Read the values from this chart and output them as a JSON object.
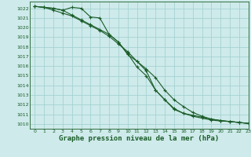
{
  "title": "Graphe pression niveau de la mer (hPa)",
  "xlabel_fontsize": 6.5,
  "bg_color": "#ceeaea",
  "grid_color": "#9ecece",
  "line_color": "#1a5c28",
  "marker": "+",
  "xlim": [
    -0.5,
    23
  ],
  "ylim": [
    1009.5,
    1022.7
  ],
  "xticks": [
    0,
    1,
    2,
    3,
    4,
    5,
    6,
    7,
    8,
    9,
    10,
    11,
    12,
    13,
    14,
    15,
    16,
    17,
    18,
    19,
    20,
    21,
    22,
    23
  ],
  "yticks": [
    1010,
    1011,
    1012,
    1013,
    1014,
    1015,
    1016,
    1017,
    1018,
    1019,
    1020,
    1021,
    1022
  ],
  "line1_x": [
    0,
    1,
    2,
    3,
    4,
    5,
    6,
    7,
    8,
    9,
    10,
    11,
    12,
    13,
    14,
    15,
    16,
    17,
    18,
    19,
    20,
    21,
    22,
    23
  ],
  "line1_y": [
    1022.2,
    1022.1,
    1022.0,
    1021.8,
    1022.1,
    1022.0,
    1021.1,
    1021.0,
    1019.3,
    1018.5,
    1017.2,
    1016.5,
    1015.5,
    1013.5,
    1012.5,
    1011.6,
    1011.1,
    1010.8,
    1010.6,
    1010.4,
    1010.3,
    1010.25,
    1010.15,
    1010.05
  ],
  "line2_x": [
    0,
    1,
    2,
    3,
    4,
    5,
    6,
    7,
    8,
    9,
    10,
    11,
    12,
    13,
    14,
    15,
    16,
    17,
    18,
    19,
    20,
    21,
    22,
    23
  ],
  "line2_y": [
    1022.2,
    1022.1,
    1021.8,
    1021.5,
    1021.2,
    1020.7,
    1020.2,
    1019.7,
    1019.1,
    1018.3,
    1017.5,
    1016.5,
    1015.7,
    1014.8,
    1013.5,
    1012.5,
    1011.8,
    1011.2,
    1010.8,
    1010.5,
    1010.35,
    1010.25,
    1010.15,
    1010.05
  ],
  "line3_x": [
    0,
    1,
    2,
    3,
    4,
    5,
    6,
    7,
    8,
    9,
    10,
    11,
    12,
    13,
    14,
    15,
    16,
    17,
    18,
    19,
    20,
    21,
    22,
    23
  ],
  "line3_y": [
    1022.2,
    1022.1,
    1022.0,
    1021.8,
    1021.3,
    1020.8,
    1020.3,
    1019.8,
    1019.3,
    1018.5,
    1017.3,
    1015.9,
    1015.0,
    1013.5,
    1012.5,
    1011.5,
    1011.1,
    1010.9,
    1010.7,
    1010.5,
    1010.35,
    1010.25,
    1010.15,
    1010.05
  ]
}
